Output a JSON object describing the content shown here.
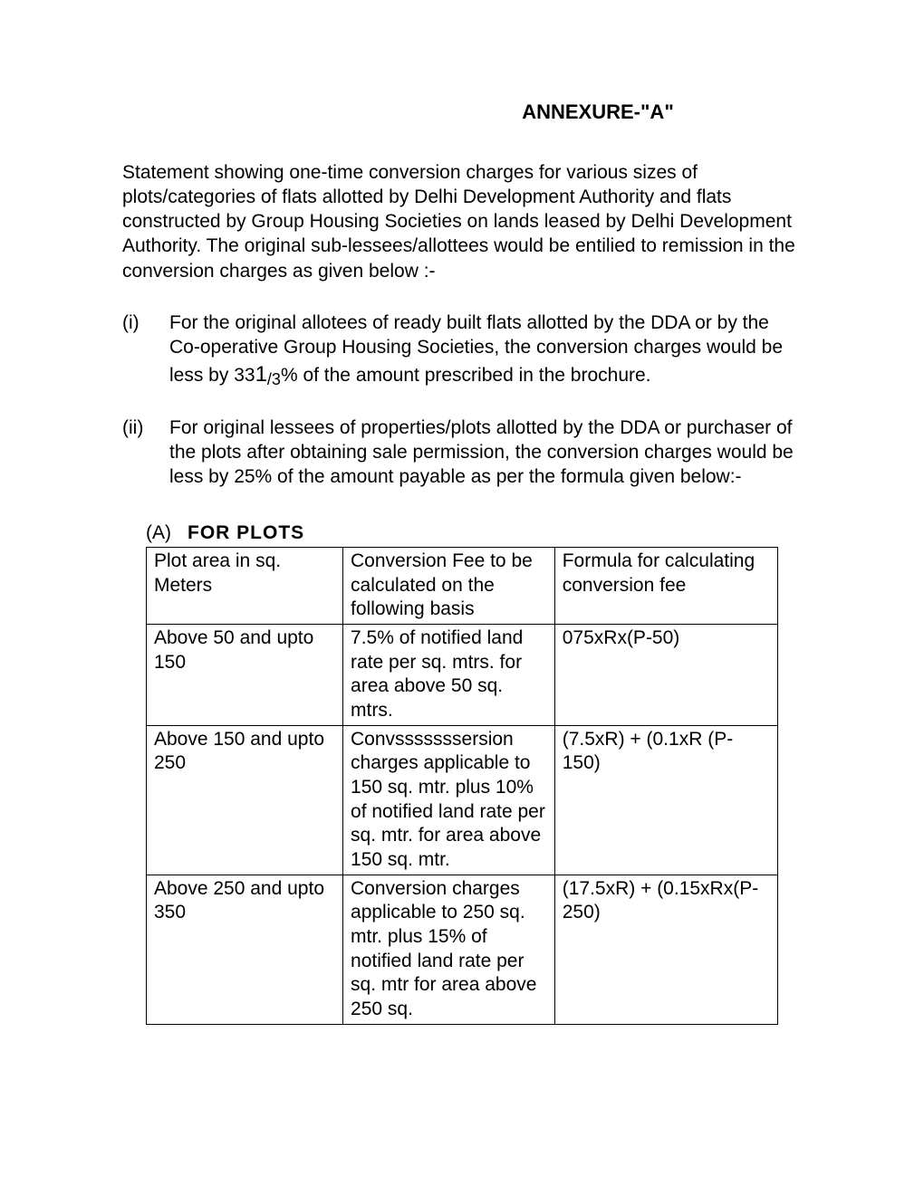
{
  "title": "ANNEXURE-\"A\"",
  "intro": "Statement showing one-time conversion charges for various sizes of plots/categories of flats allotted by Delhi  Development Authority and flats constructed by Group Housing Societies on lands leased by Delhi Development Authority. The original sub-lessees/allottees would be entilied to remission in the conversion charges as  given below :-",
  "items": [
    {
      "marker": "(i)",
      "content_pre": "For  the original allotees of  ready  built flats allotted by the DDA or by the Co-operative  Group  Housing  Societies, the conversion charges would be less by 33",
      "frac_num": "1",
      "frac_den": "/3",
      "content_post": "% of the amount  prescribed in the brochure."
    },
    {
      "marker": "(ii)",
      "content": "For original  lessees of properties/plots  allotted by the DDA or purchaser of the plots after obtaining sale  permission, the conversion charges would be less  by 25% of the amount payable as per the formula  given below:-"
    }
  ],
  "section": {
    "prefix": "(A)",
    "title": "FOR  PLOTS"
  },
  "table": {
    "headers": [
      "Plot area in sq. Meters",
      "Conversion Fee to be calculated on the following basis",
      "Formula for calculating conversion fee"
    ],
    "rows": [
      [
        "Above 50 and upto 150",
        "7.5% of notified land rate per sq. mtrs. for area above 50 sq. mtrs.",
        "075xRx(P-50)"
      ],
      [
        "Above 150 and upto 250",
        "Convsssssssersion charges applicable to 150 sq. mtr. plus 10% of notified land rate per sq. mtr. for area above 150 sq. mtr.",
        "(7.5xR) + (0.1xR (P-150)"
      ],
      [
        "Above 250 and upto 350",
        "Conversion charges applicable to 250 sq. mtr. plus 15% of notified land rate per sq. mtr  for area above 250 sq.",
        "(17.5xR) + (0.15xRx(P-250)"
      ]
    ]
  }
}
